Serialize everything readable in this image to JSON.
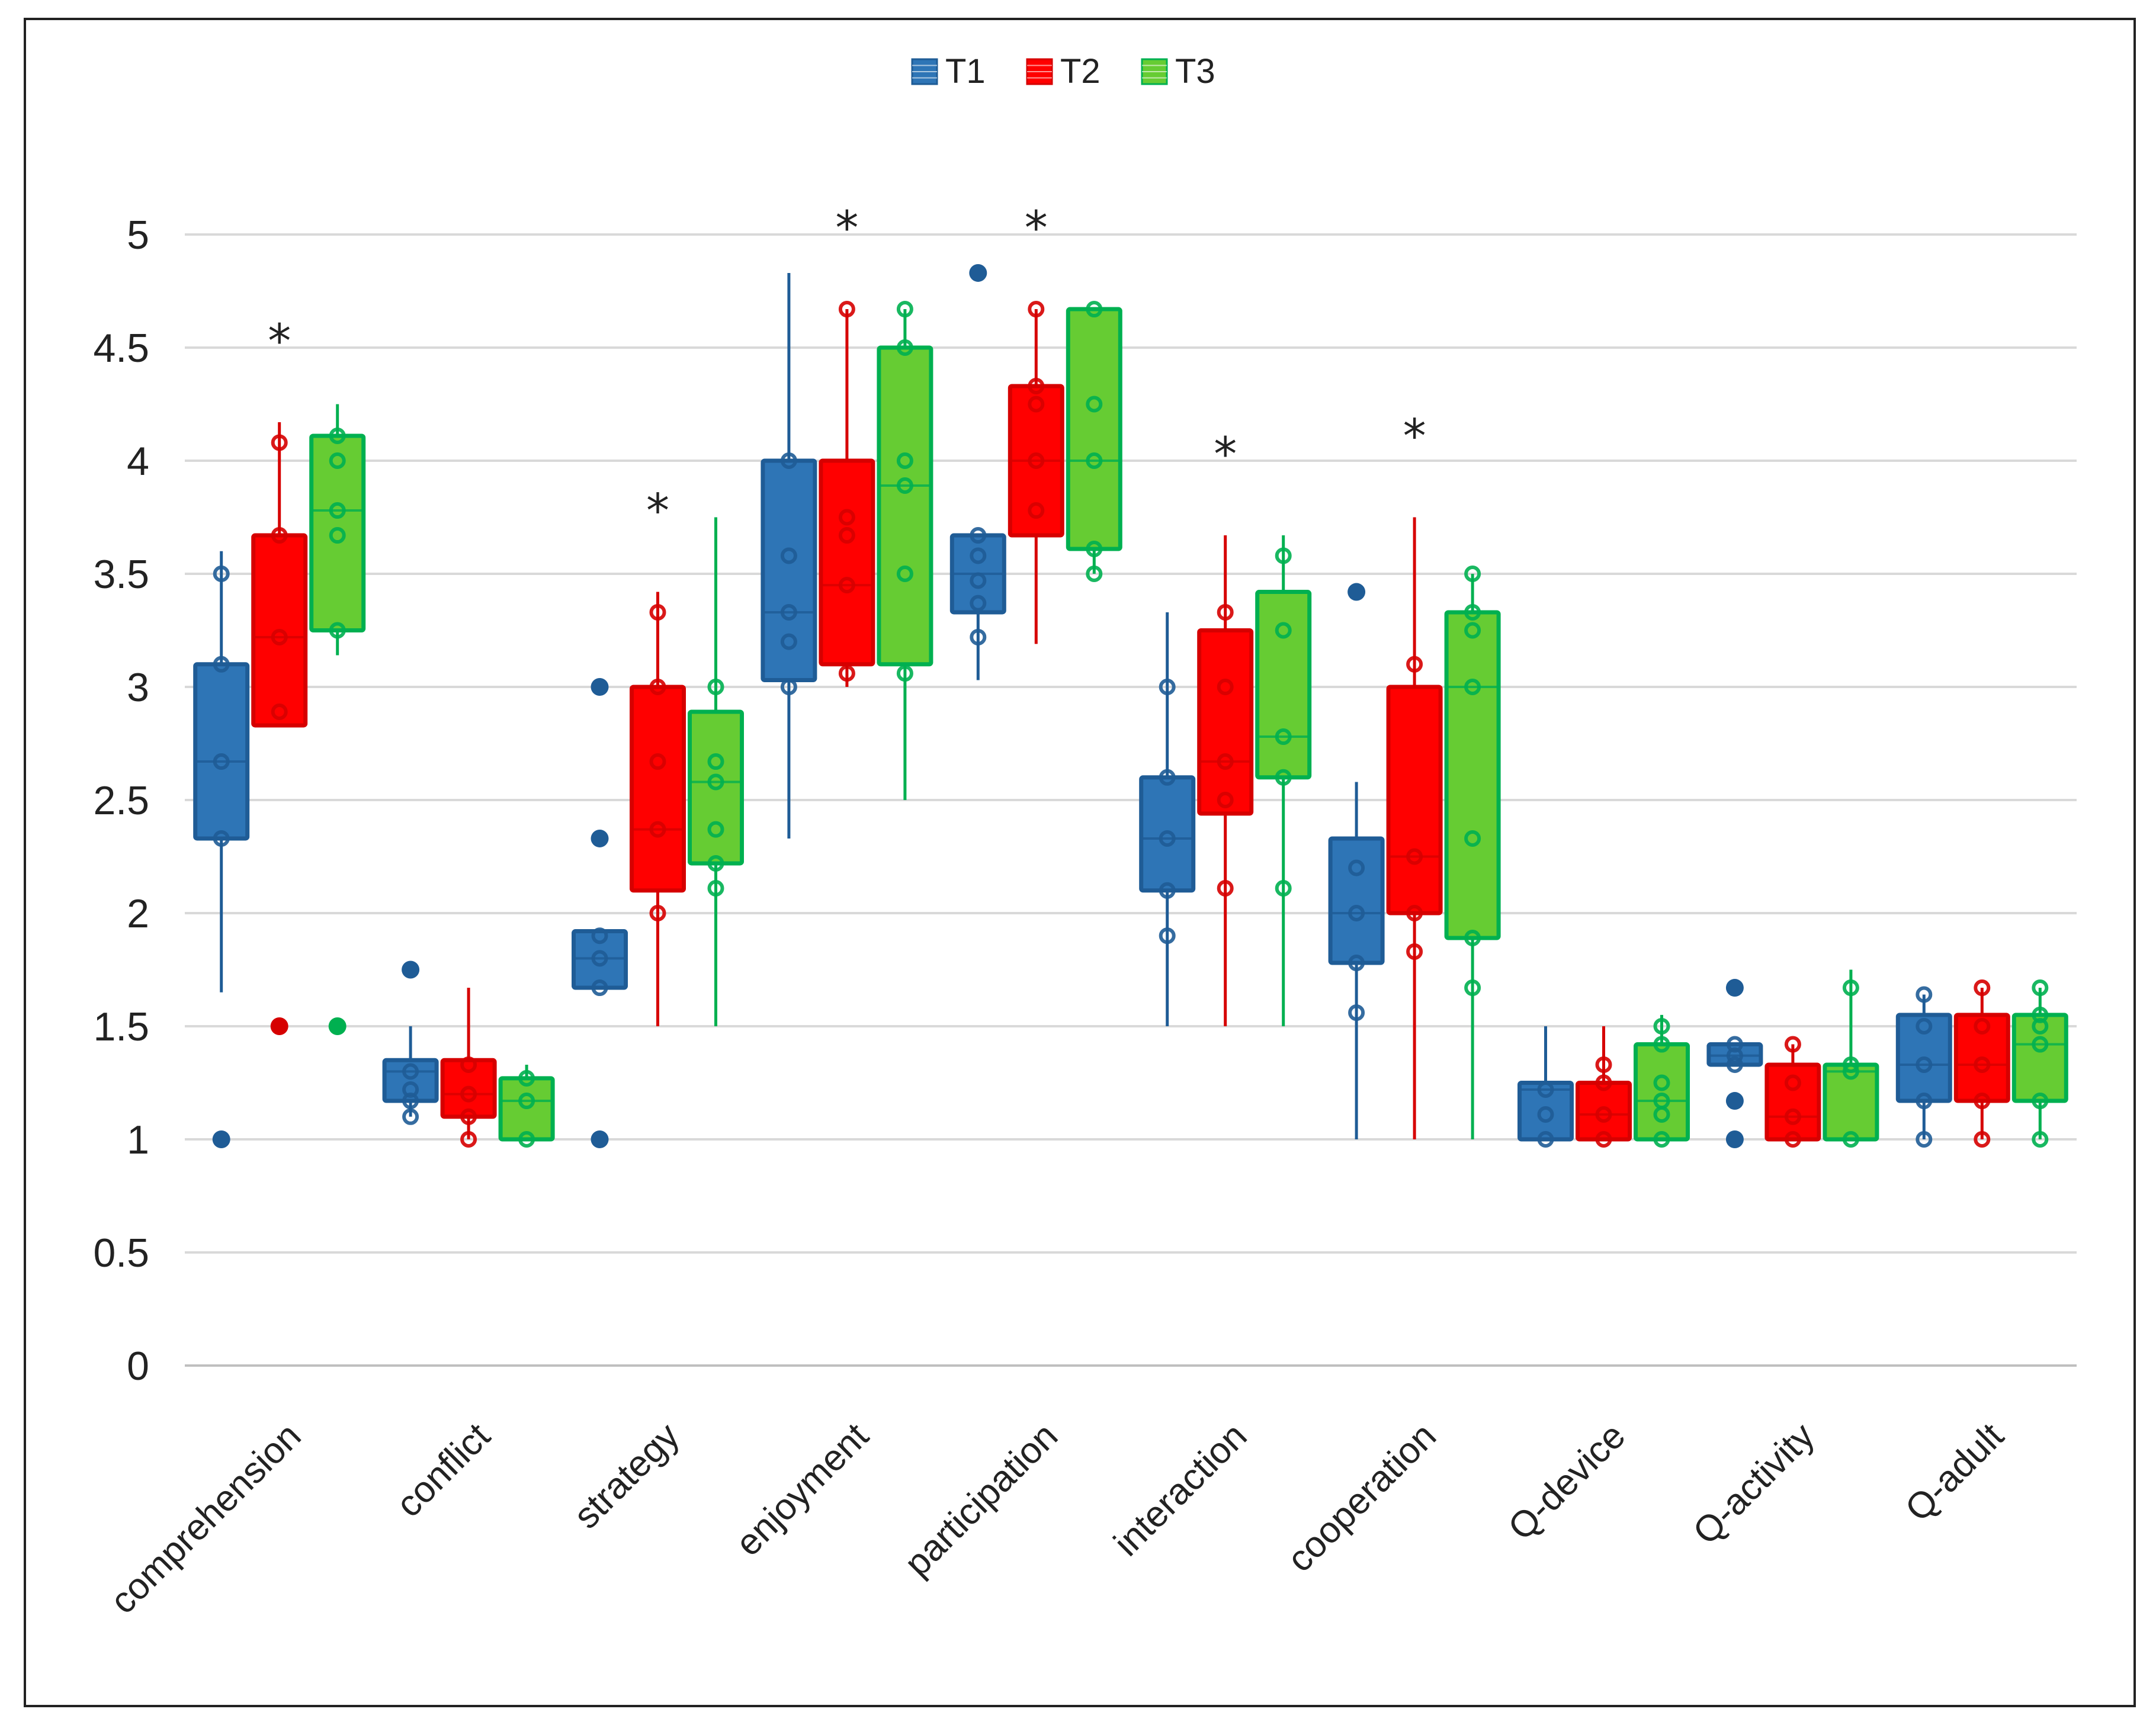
{
  "chart_data": {
    "type": "boxplot",
    "title": "",
    "xlabel": "",
    "ylabel": "",
    "ylim": [
      0,
      5
    ],
    "yticks": [
      "0",
      "0.5",
      "1",
      "1.5",
      "2",
      "2.5",
      "3",
      "3.5",
      "4",
      "4.5",
      "5"
    ],
    "grid": true,
    "legend_position": "top-center",
    "categories": [
      "comprehension",
      "conflict",
      "strategy",
      "enjoyment",
      "participation",
      "interaction",
      "cooperation",
      "Q-device",
      "Q-activity",
      "Q-adult"
    ],
    "significance": [
      "*",
      "",
      "*",
      "*",
      "*",
      "*",
      "*",
      "",
      "",
      ""
    ],
    "series": [
      {
        "name": "T1",
        "color": "#2E75B6",
        "edge": "#1F5C96",
        "boxes": [
          {
            "min": 1.65,
            "q1": 2.33,
            "median": 2.67,
            "q3": 3.1,
            "max": 3.6,
            "points": [
              2.33,
              2.67,
              3.1,
              3.5
            ],
            "outliers": [
              1.0
            ]
          },
          {
            "min": 1.1,
            "q1": 1.17,
            "median": 1.3,
            "q3": 1.35,
            "max": 1.5,
            "points": [
              1.1,
              1.17,
              1.22,
              1.3
            ],
            "outliers": [
              1.75
            ]
          },
          {
            "min": 1.67,
            "q1": 1.67,
            "median": 1.8,
            "q3": 1.92,
            "max": 1.92,
            "points": [
              1.67,
              1.8,
              1.9
            ],
            "outliers": [
              1.0,
              2.33,
              3.0
            ]
          },
          {
            "min": 2.33,
            "q1": 3.03,
            "median": 3.33,
            "q3": 4.0,
            "max": 4.83,
            "points": [
              3.0,
              3.2,
              3.33,
              3.58,
              4.0
            ],
            "outliers": []
          },
          {
            "min": 3.03,
            "q1": 3.33,
            "median": 3.5,
            "q3": 3.67,
            "max": 3.67,
            "points": [
              3.22,
              3.37,
              3.47,
              3.58,
              3.67
            ],
            "outliers": [
              4.83
            ]
          },
          {
            "min": 1.5,
            "q1": 2.1,
            "median": 2.33,
            "q3": 2.6,
            "max": 3.33,
            "points": [
              1.9,
              2.1,
              2.33,
              2.6,
              3.0
            ],
            "outliers": []
          },
          {
            "min": 1.0,
            "q1": 1.78,
            "median": 2.0,
            "q3": 2.33,
            "max": 2.58,
            "points": [
              1.56,
              1.78,
              2.0,
              2.2
            ],
            "outliers": [
              3.42
            ]
          },
          {
            "min": 1.0,
            "q1": 1.0,
            "median": 1.22,
            "q3": 1.25,
            "max": 1.5,
            "points": [
              1.0,
              1.11,
              1.22
            ],
            "outliers": []
          },
          {
            "min": 1.33,
            "q1": 1.33,
            "median": 1.37,
            "q3": 1.42,
            "max": 1.42,
            "points": [
              1.33,
              1.37,
              1.42
            ],
            "outliers": [
              1.0,
              1.17,
              1.67
            ]
          },
          {
            "min": 1.0,
            "q1": 1.17,
            "median": 1.33,
            "q3": 1.55,
            "max": 1.64,
            "points": [
              1.0,
              1.17,
              1.33,
              1.5,
              1.64
            ],
            "outliers": []
          }
        ]
      },
      {
        "name": "T2",
        "color": "#FF0000",
        "edge": "#D60000",
        "boxes": [
          {
            "min": 2.83,
            "q1": 2.83,
            "median": 3.22,
            "q3": 3.67,
            "max": 4.17,
            "points": [
              2.89,
              3.22,
              3.67,
              4.08
            ],
            "outliers": [
              1.5
            ]
          },
          {
            "min": 1.0,
            "q1": 1.1,
            "median": 1.2,
            "q3": 1.35,
            "max": 1.67,
            "points": [
              1.0,
              1.1,
              1.2,
              1.33
            ],
            "outliers": []
          },
          {
            "min": 1.5,
            "q1": 2.1,
            "median": 2.37,
            "q3": 3.0,
            "max": 3.42,
            "points": [
              2.0,
              2.37,
              2.67,
              3.0,
              3.33
            ],
            "outliers": []
          },
          {
            "min": 3.0,
            "q1": 3.1,
            "median": 3.45,
            "q3": 4.0,
            "max": 4.67,
            "points": [
              3.06,
              3.45,
              3.67,
              3.75,
              4.67
            ],
            "outliers": []
          },
          {
            "min": 3.19,
            "q1": 3.67,
            "median": 4.0,
            "q3": 4.33,
            "max": 4.67,
            "points": [
              3.78,
              4.0,
              4.25,
              4.33,
              4.67
            ],
            "outliers": []
          },
          {
            "min": 1.5,
            "q1": 2.44,
            "median": 2.67,
            "q3": 3.25,
            "max": 3.67,
            "points": [
              2.11,
              2.5,
              2.67,
              3.0,
              3.33
            ],
            "outliers": []
          },
          {
            "min": 1.0,
            "q1": 2.0,
            "median": 2.25,
            "q3": 3.0,
            "max": 3.75,
            "points": [
              1.83,
              2.0,
              2.25,
              3.1
            ],
            "outliers": []
          },
          {
            "min": 1.0,
            "q1": 1.0,
            "median": 1.11,
            "q3": 1.25,
            "max": 1.5,
            "points": [
              1.0,
              1.11,
              1.25,
              1.33
            ],
            "outliers": []
          },
          {
            "min": 1.0,
            "q1": 1.0,
            "median": 1.1,
            "q3": 1.33,
            "max": 1.42,
            "points": [
              1.0,
              1.1,
              1.25,
              1.42
            ],
            "outliers": []
          },
          {
            "min": 1.0,
            "q1": 1.17,
            "median": 1.33,
            "q3": 1.55,
            "max": 1.67,
            "points": [
              1.0,
              1.17,
              1.33,
              1.5,
              1.67
            ],
            "outliers": []
          }
        ]
      },
      {
        "name": "T3",
        "color": "#66CC33",
        "edge": "#00B050",
        "boxes": [
          {
            "min": 3.14,
            "q1": 3.25,
            "median": 3.78,
            "q3": 4.11,
            "max": 4.25,
            "points": [
              3.25,
              3.67,
              3.78,
              4.0,
              4.11
            ],
            "outliers": [
              1.5
            ]
          },
          {
            "min": 1.0,
            "q1": 1.0,
            "median": 1.17,
            "q3": 1.27,
            "max": 1.33,
            "points": [
              1.0,
              1.17,
              1.27
            ],
            "outliers": []
          },
          {
            "min": 1.5,
            "q1": 2.22,
            "median": 2.58,
            "q3": 2.89,
            "max": 3.75,
            "points": [
              2.11,
              2.22,
              2.37,
              2.58,
              2.67,
              3.0
            ],
            "outliers": []
          },
          {
            "min": 2.5,
            "q1": 3.1,
            "median": 3.89,
            "q3": 4.5,
            "max": 4.67,
            "points": [
              3.06,
              3.5,
              3.89,
              4.0,
              4.5,
              4.67
            ],
            "outliers": []
          },
          {
            "min": 3.5,
            "q1": 3.61,
            "median": 4.0,
            "q3": 4.67,
            "max": 4.67,
            "points": [
              3.5,
              3.61,
              4.0,
              4.25,
              4.67
            ],
            "outliers": []
          },
          {
            "min": 1.5,
            "q1": 2.6,
            "median": 2.78,
            "q3": 3.42,
            "max": 3.67,
            "points": [
              2.11,
              2.6,
              2.78,
              3.25,
              3.58
            ],
            "outliers": []
          },
          {
            "min": 1.0,
            "q1": 1.89,
            "median": 3.0,
            "q3": 3.33,
            "max": 3.5,
            "points": [
              1.67,
              1.89,
              2.33,
              3.0,
              3.25,
              3.33,
              3.5
            ],
            "outliers": []
          },
          {
            "min": 1.0,
            "q1": 1.0,
            "median": 1.17,
            "q3": 1.42,
            "max": 1.55,
            "points": [
              1.0,
              1.11,
              1.17,
              1.25,
              1.42,
              1.5
            ],
            "outliers": []
          },
          {
            "min": 1.0,
            "q1": 1.0,
            "median": 1.3,
            "q3": 1.33,
            "max": 1.75,
            "points": [
              1.0,
              1.3,
              1.33,
              1.67
            ],
            "outliers": []
          },
          {
            "min": 1.0,
            "q1": 1.17,
            "median": 1.42,
            "q3": 1.55,
            "max": 1.67,
            "points": [
              1.0,
              1.17,
              1.42,
              1.5,
              1.55,
              1.67
            ],
            "outliers": []
          }
        ]
      }
    ]
  }
}
